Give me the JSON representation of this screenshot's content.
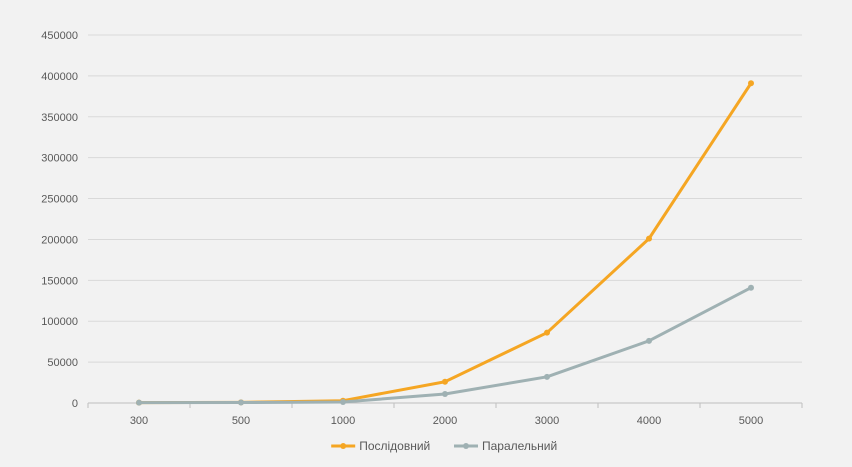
{
  "chart_data": {
    "type": "line",
    "title": "",
    "xlabel": "",
    "ylabel": "",
    "categories": [
      "300",
      "500",
      "1000",
      "2000",
      "3000",
      "4000",
      "5000"
    ],
    "y_ticks": [
      "0",
      "50000",
      "100000",
      "150000",
      "200000",
      "250000",
      "300000",
      "350000",
      "400000",
      "450000"
    ],
    "ylim": [
      0,
      450000
    ],
    "grid": true,
    "legend_position": "bottom",
    "series": [
      {
        "name": "Послідовний",
        "color": "#f5a623",
        "values": [
          500,
          800,
          2800,
          26000,
          86000,
          201000,
          391000
        ]
      },
      {
        "name": "Паралельний",
        "color": "#9fb1b3",
        "values": [
          400,
          600,
          1200,
          11000,
          32000,
          76000,
          141000
        ]
      }
    ]
  }
}
